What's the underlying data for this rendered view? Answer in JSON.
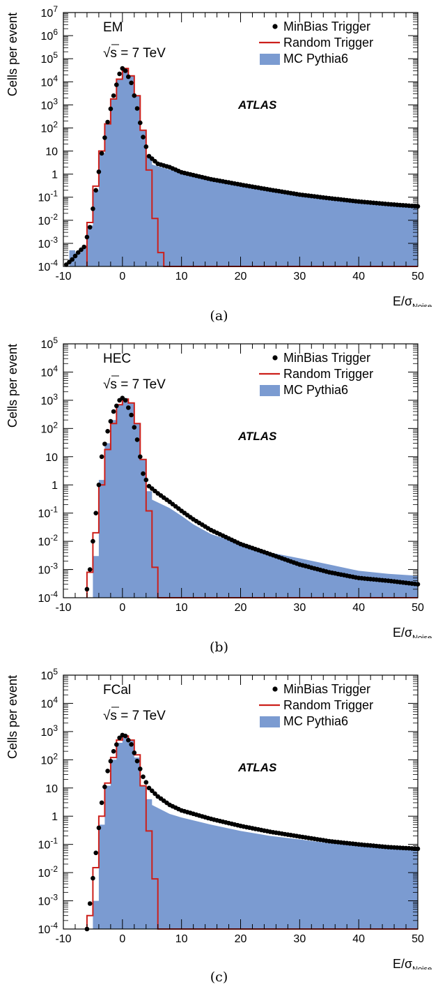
{
  "chart_data": [
    {
      "type": "histogram",
      "detector_label": "EM",
      "energy_label_prefix": "√s",
      "energy_label_suffix": " = 7 TeV",
      "experiment_label": "ATLAS",
      "ylabel": "Cells per event",
      "xlabel_main": "E/σ",
      "xlabel_sub": "Noise",
      "caption": "(a)",
      "xlim": [
        -10,
        50
      ],
      "ylim": [
        0.0001,
        10000000
      ],
      "yscale": "log",
      "xticks": [
        -10,
        0,
        10,
        20,
        30,
        40,
        50
      ],
      "yticks": [
        {
          "v": 0.0001,
          "m": "10",
          "e": "-4"
        },
        {
          "v": 0.001,
          "m": "10",
          "e": "-3"
        },
        {
          "v": 0.01,
          "m": "10",
          "e": "-2"
        },
        {
          "v": 0.1,
          "m": "10",
          "e": "-1"
        },
        {
          "v": 1,
          "m": "1",
          "e": ""
        },
        {
          "v": 10,
          "m": "10",
          "e": ""
        },
        {
          "v": 100,
          "m": "10",
          "e": "2"
        },
        {
          "v": 1000,
          "m": "10",
          "e": "3"
        },
        {
          "v": 10000,
          "m": "10",
          "e": "4"
        },
        {
          "v": 100000,
          "m": "10",
          "e": "5"
        },
        {
          "v": 1000000,
          "m": "10",
          "e": "6"
        },
        {
          "v": 10000000,
          "m": "10",
          "e": "7"
        }
      ],
      "legend": [
        "MinBias Trigger",
        "Random Trigger",
        "MC Pythia6"
      ],
      "legend_placement": "top-right",
      "colors": {
        "minbias": "#000000",
        "random": "#cc1f1a",
        "mc": "#7b9bd1"
      },
      "series": {
        "mc": [
          [
            -10,
            0.0001
          ],
          [
            -9,
            0.0005
          ],
          [
            -8,
            0.0004
          ],
          [
            -7,
            0.0006
          ],
          [
            -6,
            0.006
          ],
          [
            -5,
            0.2
          ],
          [
            -4,
            8
          ],
          [
            -3,
            150
          ],
          [
            -2,
            1800
          ],
          [
            -1,
            13000
          ],
          [
            0,
            38000
          ],
          [
            1,
            18000
          ],
          [
            2,
            2500
          ],
          [
            3,
            80
          ],
          [
            4,
            6
          ],
          [
            5,
            2.6
          ],
          [
            10,
            1.1
          ],
          [
            15,
            0.6
          ],
          [
            20,
            0.35
          ],
          [
            25,
            0.22
          ],
          [
            30,
            0.12
          ],
          [
            35,
            0.08
          ],
          [
            40,
            0.06
          ],
          [
            45,
            0.045
          ],
          [
            50,
            0.04
          ]
        ],
        "minbias": [
          [
            -9.5,
            0.00012
          ],
          [
            -8.5,
            0.0002
          ],
          [
            -7.5,
            0.0004
          ],
          [
            -6.5,
            0.0007
          ],
          [
            -5.5,
            0.005
          ],
          [
            -4.5,
            0.2
          ],
          [
            -3.5,
            8
          ],
          [
            -2.5,
            180
          ],
          [
            -1.5,
            2500
          ],
          [
            -0.5,
            22000
          ],
          [
            0,
            38000
          ],
          [
            0.5,
            30000
          ],
          [
            1.5,
            9000
          ],
          [
            2.5,
            700
          ],
          [
            3.5,
            40
          ],
          [
            4.5,
            6
          ],
          [
            6,
            2.8
          ],
          [
            8,
            2.0
          ],
          [
            10,
            1.2
          ],
          [
            15,
            0.6
          ],
          [
            20,
            0.35
          ],
          [
            25,
            0.21
          ],
          [
            30,
            0.13
          ],
          [
            35,
            0.09
          ],
          [
            40,
            0.065
          ],
          [
            45,
            0.05
          ],
          [
            50,
            0.04
          ]
        ],
        "random": [
          [
            -6,
            0.0001
          ],
          [
            -6,
            0.008
          ],
          [
            -5,
            0.008
          ],
          [
            -5,
            0.3
          ],
          [
            -4,
            0.3
          ],
          [
            -4,
            10
          ],
          [
            -3,
            10
          ],
          [
            -3,
            150
          ],
          [
            -2,
            150
          ],
          [
            -2,
            1800
          ],
          [
            -1,
            1800
          ],
          [
            -1,
            13000
          ],
          [
            0,
            13000
          ],
          [
            0,
            38000
          ],
          [
            1,
            38000
          ],
          [
            1,
            18000
          ],
          [
            2,
            18000
          ],
          [
            2,
            2500
          ],
          [
            3,
            2500
          ],
          [
            3,
            80
          ],
          [
            4,
            80
          ],
          [
            4,
            1.5
          ],
          [
            5,
            1.5
          ],
          [
            5,
            0.012
          ],
          [
            6,
            0.012
          ],
          [
            6,
            0.0004
          ],
          [
            7,
            0.0004
          ],
          [
            7,
            0.0001
          ],
          [
            50,
            0.0001
          ]
        ]
      }
    },
    {
      "type": "histogram",
      "detector_label": "HEC",
      "energy_label_prefix": "√s",
      "energy_label_suffix": " = 7 TeV",
      "experiment_label": "ATLAS",
      "ylabel": "Cells per event",
      "xlabel_main": "E/σ",
      "xlabel_sub": "Noise",
      "caption": "(b)",
      "xlim": [
        -10,
        50
      ],
      "ylim": [
        0.0001,
        100000
      ],
      "yscale": "log",
      "xticks": [
        -10,
        0,
        10,
        20,
        30,
        40,
        50
      ],
      "yticks": [
        {
          "v": 0.0001,
          "m": "10",
          "e": "-4"
        },
        {
          "v": 0.001,
          "m": "10",
          "e": "-3"
        },
        {
          "v": 0.01,
          "m": "10",
          "e": "-2"
        },
        {
          "v": 0.1,
          "m": "10",
          "e": "-1"
        },
        {
          "v": 1,
          "m": "1",
          "e": ""
        },
        {
          "v": 10,
          "m": "10",
          "e": ""
        },
        {
          "v": 100,
          "m": "10",
          "e": "2"
        },
        {
          "v": 1000,
          "m": "10",
          "e": "3"
        },
        {
          "v": 10000,
          "m": "10",
          "e": "4"
        },
        {
          "v": 100000,
          "m": "10",
          "e": "5"
        }
      ],
      "legend": [
        "MinBias Trigger",
        "Random Trigger",
        "MC Pythia6"
      ],
      "legend_placement": "top-right",
      "colors": {
        "minbias": "#000000",
        "random": "#cc1f1a",
        "mc": "#7b9bd1"
      },
      "series": {
        "mc": [
          [
            -6,
            0.0001
          ],
          [
            -5,
            0.003
          ],
          [
            -4,
            1.5
          ],
          [
            -3,
            30
          ],
          [
            -2,
            200
          ],
          [
            -1,
            700
          ],
          [
            0,
            1200
          ],
          [
            1,
            800
          ],
          [
            2,
            150
          ],
          [
            3,
            8
          ],
          [
            4,
            0.6
          ],
          [
            5,
            0.3
          ],
          [
            8,
            0.15
          ],
          [
            10,
            0.08
          ],
          [
            12,
            0.04
          ],
          [
            15,
            0.018
          ],
          [
            20,
            0.008
          ],
          [
            25,
            0.004
          ],
          [
            30,
            0.0025
          ],
          [
            35,
            0.0015
          ],
          [
            40,
            0.0009
          ],
          [
            45,
            0.0007
          ],
          [
            50,
            0.0006
          ]
        ],
        "minbias": [
          [
            -6,
            0.0002
          ],
          [
            -5.5,
            0.001
          ],
          [
            -4.5,
            0.1
          ],
          [
            -3.5,
            10
          ],
          [
            -2.5,
            80
          ],
          [
            -1.5,
            400
          ],
          [
            -0.5,
            1000
          ],
          [
            0,
            1200
          ],
          [
            0.5,
            1000
          ],
          [
            1.5,
            300
          ],
          [
            2.5,
            40
          ],
          [
            3.5,
            2.5
          ],
          [
            4.5,
            0.9
          ],
          [
            6,
            0.5
          ],
          [
            8,
            0.25
          ],
          [
            10,
            0.12
          ],
          [
            12,
            0.06
          ],
          [
            15,
            0.025
          ],
          [
            20,
            0.008
          ],
          [
            25,
            0.0035
          ],
          [
            30,
            0.0015
          ],
          [
            35,
            0.0008
          ],
          [
            40,
            0.0005
          ],
          [
            45,
            0.0004
          ],
          [
            50,
            0.0003
          ]
        ],
        "random": [
          [
            -6,
            0.0001
          ],
          [
            -6,
            0.0008
          ],
          [
            -5,
            0.0008
          ],
          [
            -5,
            0.02
          ],
          [
            -4,
            0.02
          ],
          [
            -4,
            1.0
          ],
          [
            -3,
            1.0
          ],
          [
            -3,
            18
          ],
          [
            -2,
            18
          ],
          [
            -2,
            150
          ],
          [
            -1,
            150
          ],
          [
            -1,
            700
          ],
          [
            0,
            700
          ],
          [
            0,
            1100
          ],
          [
            1,
            1100
          ],
          [
            1,
            800
          ],
          [
            2,
            800
          ],
          [
            2,
            150
          ],
          [
            3,
            150
          ],
          [
            3,
            8
          ],
          [
            4,
            8
          ],
          [
            4,
            0.12
          ],
          [
            5,
            0.12
          ],
          [
            5,
            0.0012
          ],
          [
            6,
            0.0012
          ],
          [
            6,
            0.0001
          ],
          [
            50,
            0.0001
          ]
        ]
      }
    },
    {
      "type": "histogram",
      "detector_label": "FCal",
      "energy_label_prefix": "√s",
      "energy_label_suffix": " = 7 TeV",
      "experiment_label": "ATLAS",
      "ylabel": "Cells per event",
      "xlabel_main": "E/σ",
      "xlabel_sub": "Noise",
      "caption": "(c)",
      "xlim": [
        -10,
        50
      ],
      "ylim": [
        0.0001,
        100000
      ],
      "yscale": "log",
      "xticks": [
        -10,
        0,
        10,
        20,
        30,
        40,
        50
      ],
      "yticks": [
        {
          "v": 0.0001,
          "m": "10",
          "e": "-4"
        },
        {
          "v": 0.001,
          "m": "10",
          "e": "-3"
        },
        {
          "v": 0.01,
          "m": "10",
          "e": "-2"
        },
        {
          "v": 0.1,
          "m": "10",
          "e": "-1"
        },
        {
          "v": 1,
          "m": "1",
          "e": ""
        },
        {
          "v": 10,
          "m": "10",
          "e": ""
        },
        {
          "v": 100,
          "m": "10",
          "e": "2"
        },
        {
          "v": 1000,
          "m": "10",
          "e": "3"
        },
        {
          "v": 10000,
          "m": "10",
          "e": "4"
        },
        {
          "v": 100000,
          "m": "10",
          "e": "5"
        }
      ],
      "legend": [
        "MinBias Trigger",
        "Random Trigger",
        "MC Pythia6"
      ],
      "legend_placement": "top-right",
      "colors": {
        "minbias": "#000000",
        "random": "#cc1f1a",
        "mc": "#7b9bd1"
      },
      "series": {
        "mc": [
          [
            -6,
            0.0001
          ],
          [
            -5,
            0.001
          ],
          [
            -4,
            0.5
          ],
          [
            -3,
            12
          ],
          [
            -2,
            100
          ],
          [
            -1,
            400
          ],
          [
            0,
            700
          ],
          [
            1,
            500
          ],
          [
            2,
            120
          ],
          [
            3,
            12
          ],
          [
            4,
            4
          ],
          [
            5,
            2.5
          ],
          [
            8,
            1.2
          ],
          [
            10,
            0.9
          ],
          [
            15,
            0.5
          ],
          [
            20,
            0.3
          ],
          [
            25,
            0.2
          ],
          [
            30,
            0.15
          ],
          [
            35,
            0.11
          ],
          [
            40,
            0.09
          ],
          [
            45,
            0.075
          ],
          [
            50,
            0.065
          ]
        ],
        "minbias": [
          [
            -6,
            0.0001
          ],
          [
            -5.5,
            0.0008
          ],
          [
            -4.5,
            0.05
          ],
          [
            -3.5,
            3
          ],
          [
            -2.5,
            40
          ],
          [
            -1.5,
            200
          ],
          [
            -0.5,
            600
          ],
          [
            0,
            750
          ],
          [
            0.5,
            700
          ],
          [
            1.5,
            350
          ],
          [
            2.5,
            90
          ],
          [
            3.5,
            25
          ],
          [
            4.5,
            10
          ],
          [
            6,
            5
          ],
          [
            8,
            2.5
          ],
          [
            10,
            1.6
          ],
          [
            15,
            0.8
          ],
          [
            20,
            0.45
          ],
          [
            25,
            0.28
          ],
          [
            30,
            0.19
          ],
          [
            35,
            0.13
          ],
          [
            40,
            0.1
          ],
          [
            45,
            0.08
          ],
          [
            50,
            0.07
          ]
        ],
        "random": [
          [
            -6,
            0.0001
          ],
          [
            -6,
            0.0003
          ],
          [
            -5,
            0.0003
          ],
          [
            -5,
            0.015
          ],
          [
            -4,
            0.015
          ],
          [
            -4,
            1.0
          ],
          [
            -3,
            1.0
          ],
          [
            -3,
            15
          ],
          [
            -2,
            15
          ],
          [
            -2,
            120
          ],
          [
            -1,
            120
          ],
          [
            -1,
            500
          ],
          [
            0,
            500
          ],
          [
            0,
            700
          ],
          [
            1,
            700
          ],
          [
            1,
            500
          ],
          [
            2,
            500
          ],
          [
            2,
            150
          ],
          [
            3,
            150
          ],
          [
            3,
            12
          ],
          [
            4,
            12
          ],
          [
            4,
            0.3
          ],
          [
            5,
            0.3
          ],
          [
            5,
            0.006
          ],
          [
            6,
            0.006
          ],
          [
            6,
            0.0001
          ],
          [
            50,
            0.0001
          ]
        ]
      }
    }
  ]
}
